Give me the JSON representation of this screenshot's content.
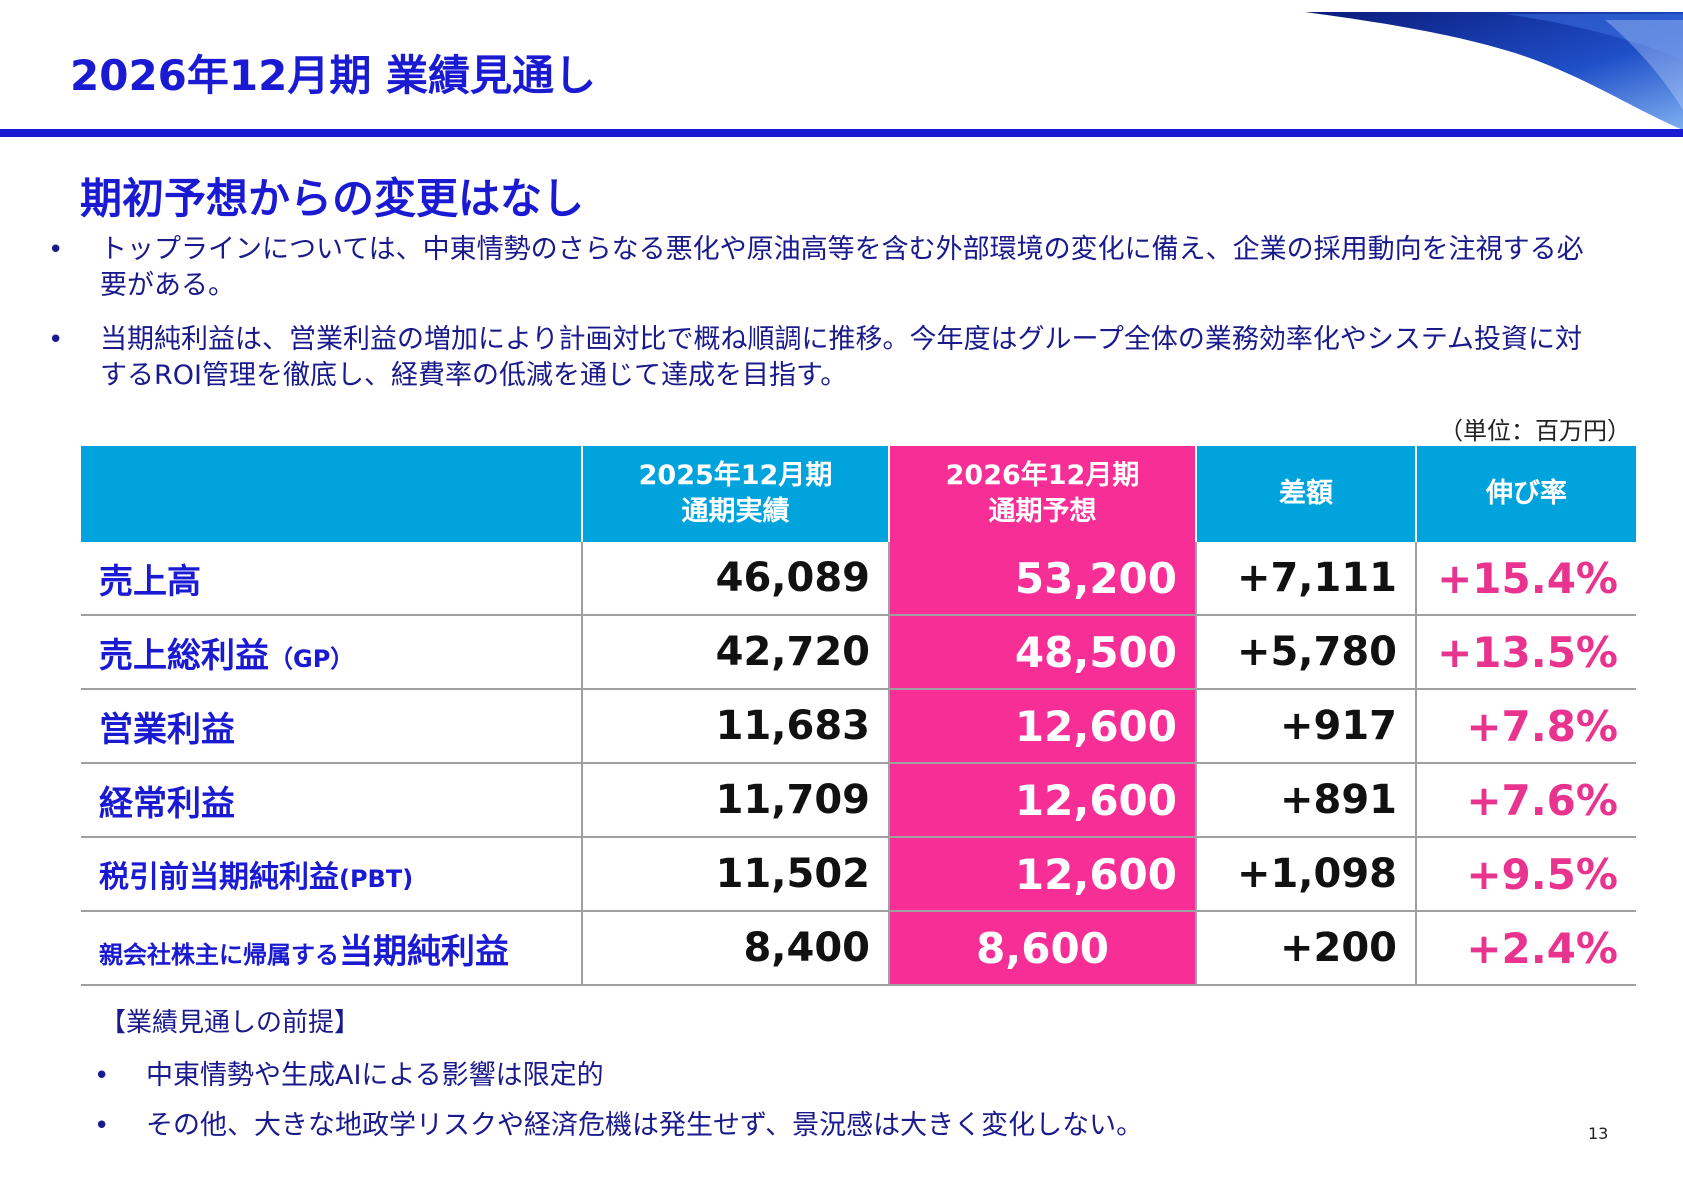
{
  "title": "2026年12月期 業績見通し",
  "subtitle": "期初予想からの変更はなし",
  "bullets": [
    "トップラインについては、中東情勢のさらなる悪化や原油高等を含む外部環境の変化に備え、企業の採用動向を注視する必要がある。",
    "当期純利益は、営業利益の増加により計画対比で概ね順調に推移。今年度はグループ全体の業務効率化やシステム投資に対するROI管理を徹底し、経費率の低減を通じて達成を目指す。"
  ],
  "unit_note": "（単位：百万円）",
  "table": {
    "headers": {
      "prev_line1": "2025年12月期",
      "prev_line2": "通期実績",
      "fc_line1": "2026年12月期",
      "fc_line2": "通期予想",
      "diff": "差額",
      "growth": "伸び率"
    },
    "rows": [
      {
        "label": "売上高",
        "prev": "46,089",
        "forecast": "53,200",
        "diff": "+7,111",
        "growth": "+15.4%"
      },
      {
        "label": "売上総利益",
        "label_suffix": "（GP）",
        "prev": "42,720",
        "forecast": "48,500",
        "diff": "+5,780",
        "growth": "+13.5%"
      },
      {
        "label": "営業利益",
        "prev": "11,683",
        "forecast": "12,600",
        "diff": "+917",
        "growth": "+7.8%"
      },
      {
        "label": "経常利益",
        "prev": "11,709",
        "forecast": "12,600",
        "diff": "+891",
        "growth": "+7.6%"
      },
      {
        "label": "税引前当期純利益",
        "label_suffix": "(PBT)",
        "prev": "11,502",
        "forecast": "12,600",
        "diff": "+1,098",
        "growth": "+9.5%"
      },
      {
        "label_prefix": "親会社株主に帰属する",
        "label": "当期純利益",
        "prev": "8,400",
        "forecast": "8,600",
        "diff": "+200",
        "growth": "+2.4%"
      }
    ]
  },
  "premise_title": "【業績見通しの前提】",
  "premises": [
    "中東情勢や生成AIによる影響は限定的",
    "その他、大きな地政学リスクや経済危機は発生せず、景況感は大きく変化しない。"
  ],
  "page_number": "13",
  "colors": {
    "title_blue": "#1a1ad2",
    "header_cyan": "#00a3dc",
    "forecast_pink": "#f62e96",
    "growth_pink": "#e8338f"
  }
}
